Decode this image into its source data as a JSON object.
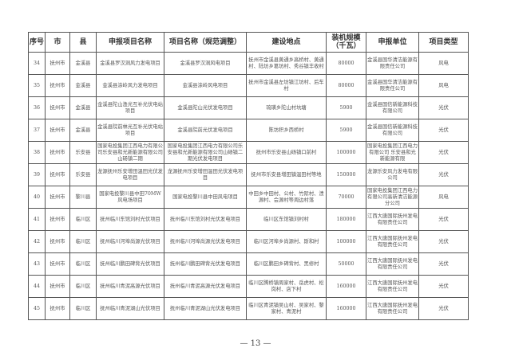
{
  "table": {
    "headers": [
      "序号",
      "市",
      "县",
      "申报项目名称",
      "项目名称（规范调整）",
      "建设地点",
      "装机规模（千瓦）",
      "申报单位",
      "项目类型"
    ],
    "rows": [
      [
        "34",
        "抚州市",
        "金溪县",
        "金溪县罗汉洞风力发电项目",
        "金溪县罗汉洞风电项目",
        "抚州市金溪县黄通乡高桥村、黄通村、陆坊乡葛坊村、秀谷镇丰收村",
        "80000",
        "金溪县国华清洁能源有限责任公司",
        "风电"
      ],
      [
        "35",
        "抚州市",
        "金溪县",
        "金溪县涂岭风力发电项目",
        "金溪县涂岭风电项目",
        "抚州市金溪县左坊镇江坊村、后车村",
        "80000",
        "金溪县国华清洁能源有限责任公司",
        "风电"
      ],
      [
        "36",
        "抚州市",
        "金溪县",
        "金溪县陀山渔光互补光伏电站项目",
        "金溪县陀山光伏发电项目",
        "琉璜乡陀山村坑塘",
        "5900",
        "金溪县国信新能源科技有限公司",
        "光伏"
      ],
      [
        "37",
        "抚州市",
        "金溪县",
        "金溪县院前林光互补光伏电站项目",
        "金溪县院前光伏发电项目",
        "陈坊积乡西桥村",
        "5900",
        "金溪县国信新能源科技有限公司",
        "光伏"
      ],
      [
        "38",
        "抚州市",
        "乐安县",
        "国家电投集团江西电力有限公司乐安县和光新能源有限公司山砀镇二期",
        "国家电投集团江西电力有限公司乐安县和光新能源有限公司山砀镇二期光伏发电项目",
        "抚州市乐安县山砀镇口前村",
        "100000",
        "国家电投集团江西电力有限公司 乐安县和光新能源有限",
        "光伏"
      ],
      [
        "39",
        "抚州市",
        "乐安县",
        "龙源抚州乐安增田温田光伏发电项目",
        "龙源抚州乐安增田温田光伏发电项目",
        "抚州市乐安县增田镇温田村等地",
        "150000",
        "龙源乐安风力发电有限公司",
        "光伏"
      ],
      [
        "40",
        "抚州市",
        "黎川县",
        "国家电投黎川县中田70MW风电场项目",
        "国家电投黎川县中田风电项目",
        "中田乡中田村、公村、竹际村、渍源村、会源村等周边村落",
        "70000",
        "国家电投集团江西电力有限公司高新清洁能源分公司",
        "风电"
      ],
      [
        "41",
        "抚州市",
        "临川区",
        "抚州临川东馆刘村光伏项目",
        "抚州临川东馆刘村光伏发电项目",
        "临川区东馆镇刘村村",
        "180000",
        "江西大唐国际抚州发电有限责任公司",
        "光伏"
      ],
      [
        "42",
        "抚州市",
        "临川区",
        "抚州临川河埠尚源光伏项目",
        "抚州临川河埠尚源光伏发电项目",
        "临川区河埠乡尚源村、斯和村",
        "100000",
        "江西大唐国际抚州发电有限责任公司",
        "光伏"
      ],
      [
        "43",
        "抚州市",
        "临川区",
        "抚州临川鹏田碑背光伏项目",
        "抚州临川鹏田碑背光伏发电项目",
        "临川区鹏田乡碑背村、黑修村",
        "50000",
        "江西大唐国际抚州发电有限责任公司",
        "光伏"
      ],
      [
        "44",
        "抚州市",
        "临川区",
        "抚州临川青泥高源光伏项目",
        "抚州临川青泥高源光伏发电项目",
        "临川区腾桥镇周家村、岳虎村、松岗村、店下村",
        "160000",
        "江西大唐国际抚州发电有限责任公司",
        "光伏"
      ],
      [
        "45",
        "抚州市",
        "临川区",
        "抚州临川青泥湖山光伏项目",
        "抚州临川青泥湖山光伏发电项目",
        "临川区青泥镇吴山村、吴家村、黎家村、青泥村",
        "160000",
        "江西大唐国际抚州发电有限责任公司",
        "光伏"
      ]
    ]
  },
  "page_number": "— 13 —"
}
